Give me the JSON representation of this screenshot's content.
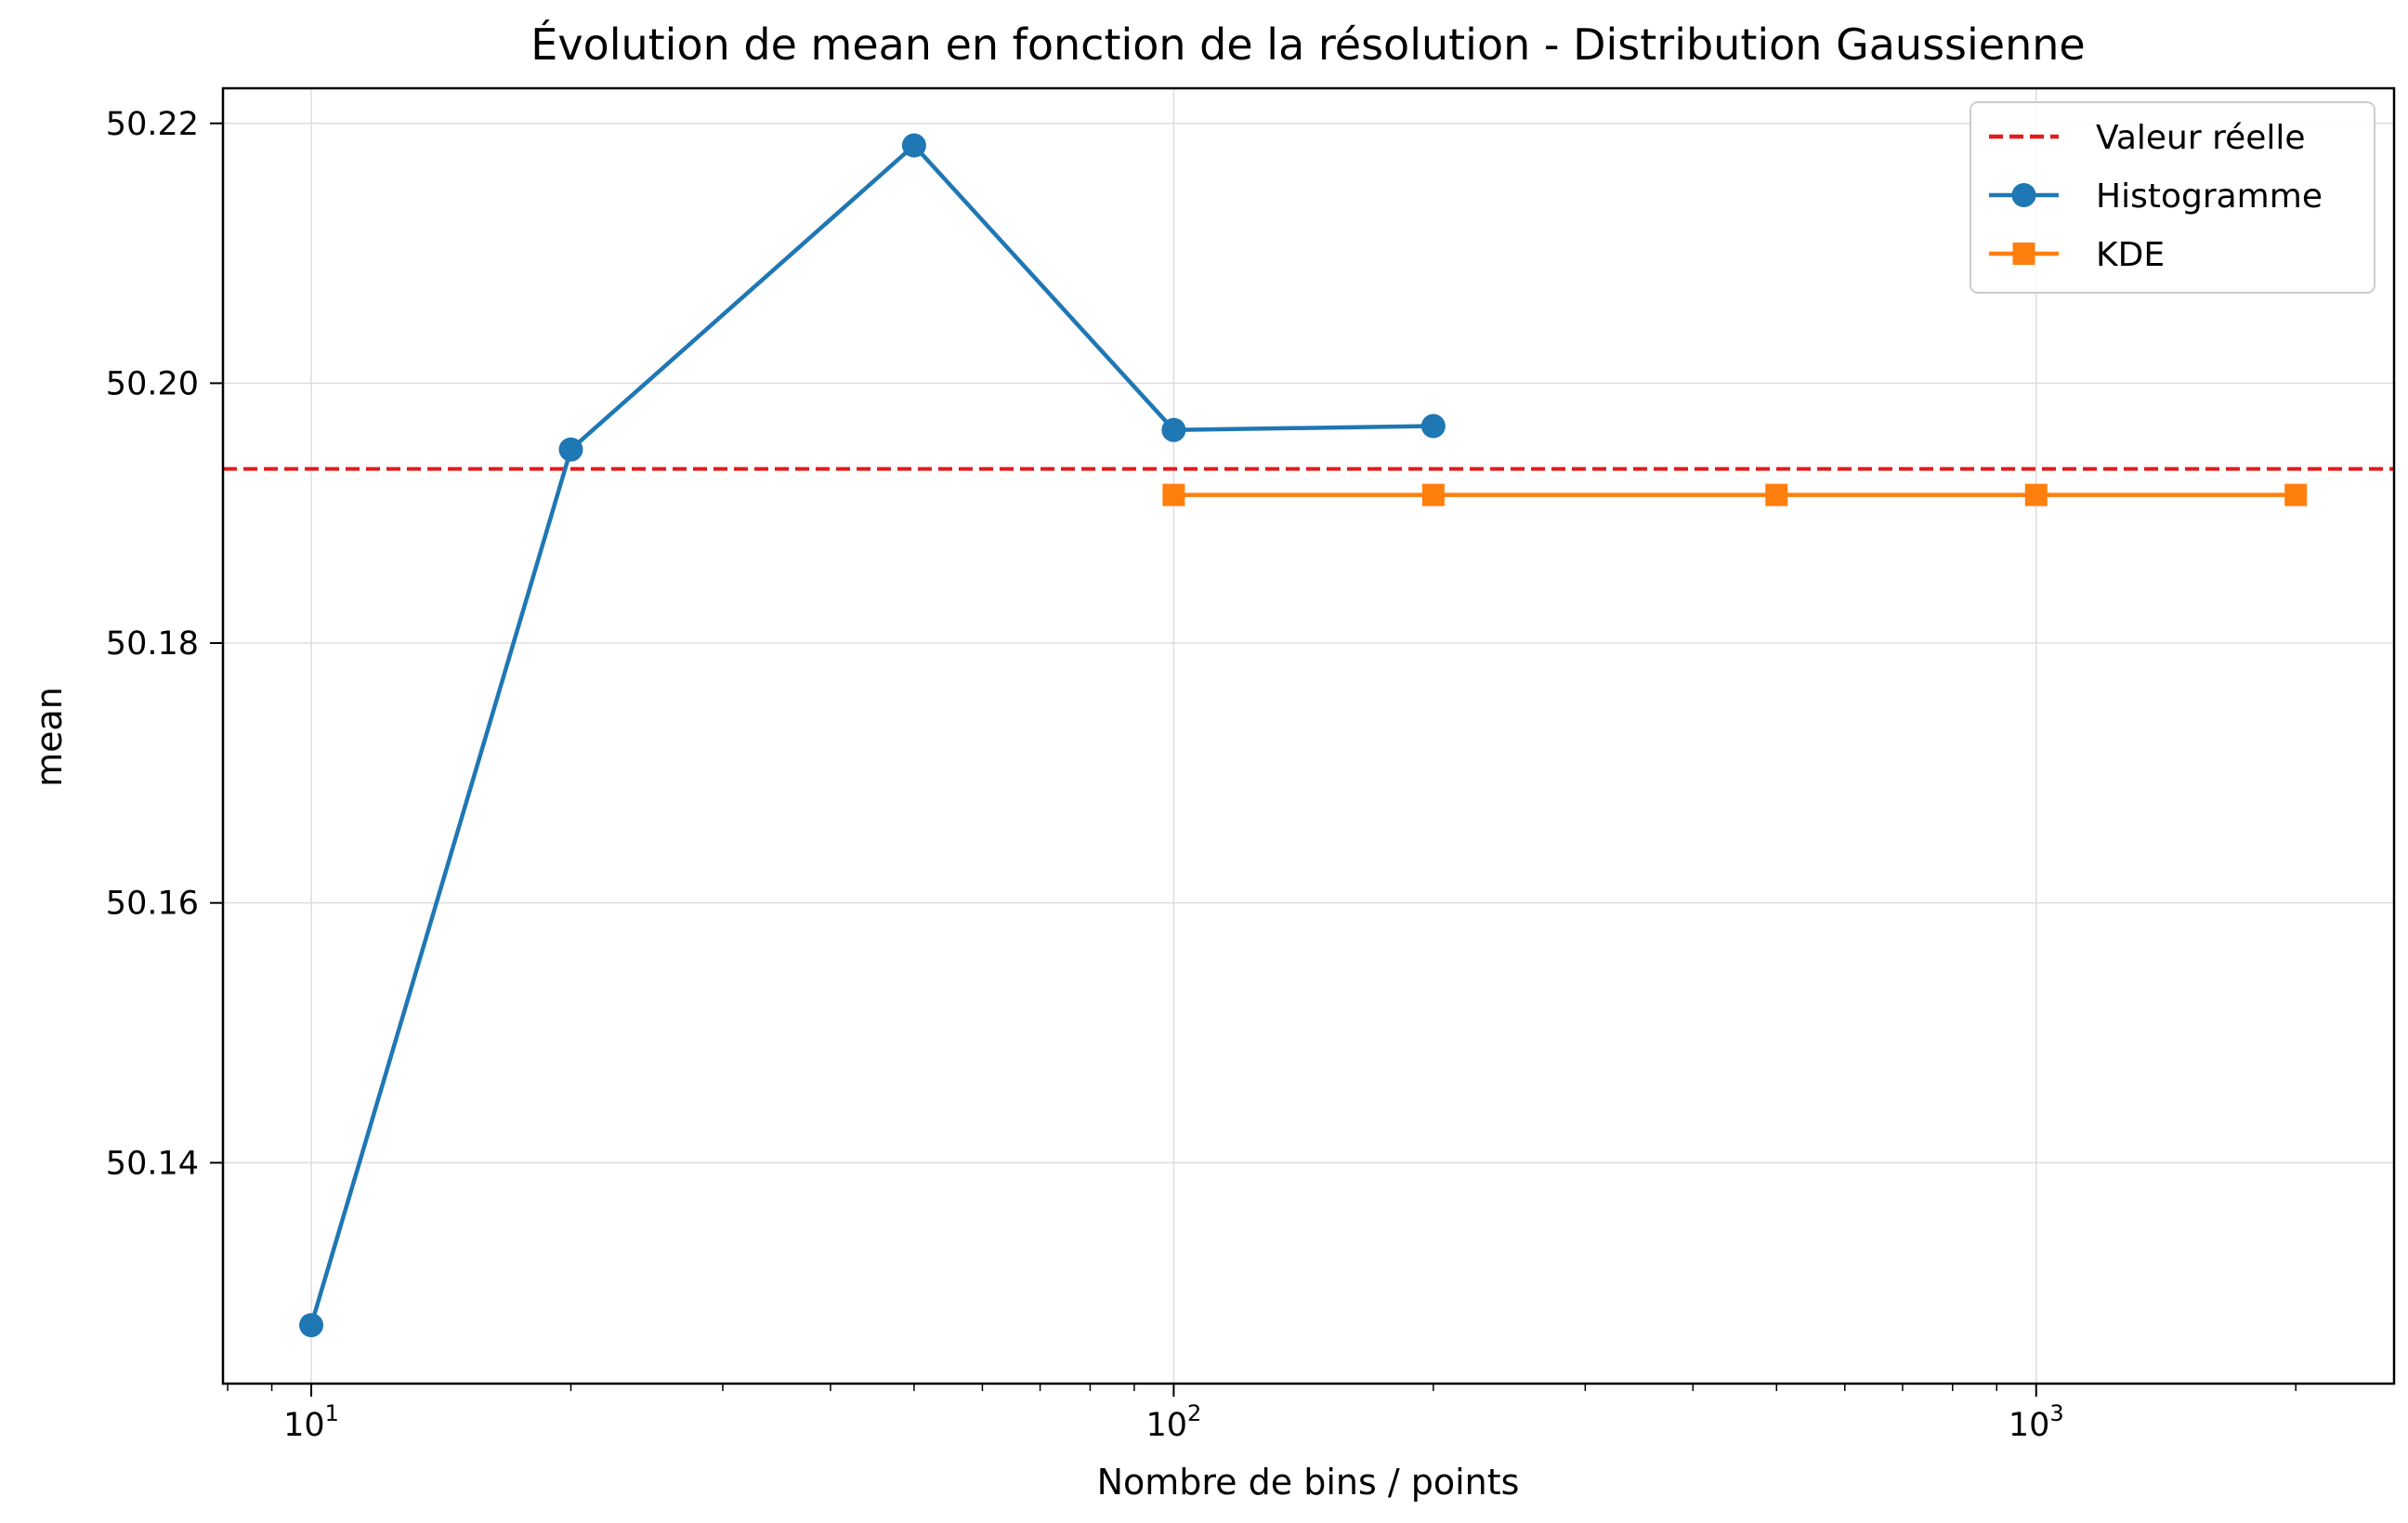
{
  "chart_data": {
    "type": "line",
    "title": "Évolution de mean en fonction de la résolution - Distribution Gaussienne",
    "xlabel": "Nombre de bins / points",
    "ylabel": "mean",
    "x_scale": "log",
    "xlim": [
      7.9,
      2600
    ],
    "ylim": [
      50.123,
      50.2227
    ],
    "x_ticks": [
      {
        "value": 10,
        "base": "10",
        "exp": "1"
      },
      {
        "value": 100,
        "base": "10",
        "exp": "2"
      },
      {
        "value": 1000,
        "base": "10",
        "exp": "3"
      }
    ],
    "y_ticks": [
      {
        "value": 50.14,
        "label": "50.14"
      },
      {
        "value": 50.16,
        "label": "50.16"
      },
      {
        "value": 50.18,
        "label": "50.18"
      },
      {
        "value": 50.2,
        "label": "50.20"
      },
      {
        "value": 50.22,
        "label": "50.22"
      }
    ],
    "grid": true,
    "legend_position": "top-right",
    "reference_line": {
      "name": "Valeur réelle",
      "value": 50.1934,
      "color": "#e31a1c",
      "style": "dashed"
    },
    "series": [
      {
        "name": "Histogramme",
        "color": "#1f77b4",
        "marker": "circle",
        "x": [
          10,
          20,
          50,
          100,
          200
        ],
        "y": [
          50.1275,
          50.1949,
          50.2183,
          50.1964,
          50.1967
        ]
      },
      {
        "name": "KDE",
        "color": "#ff7f0e",
        "marker": "square",
        "x": [
          100,
          200,
          500,
          1000,
          2000
        ],
        "y": [
          50.1914,
          50.1914,
          50.1914,
          50.1914,
          50.1914
        ]
      }
    ]
  }
}
